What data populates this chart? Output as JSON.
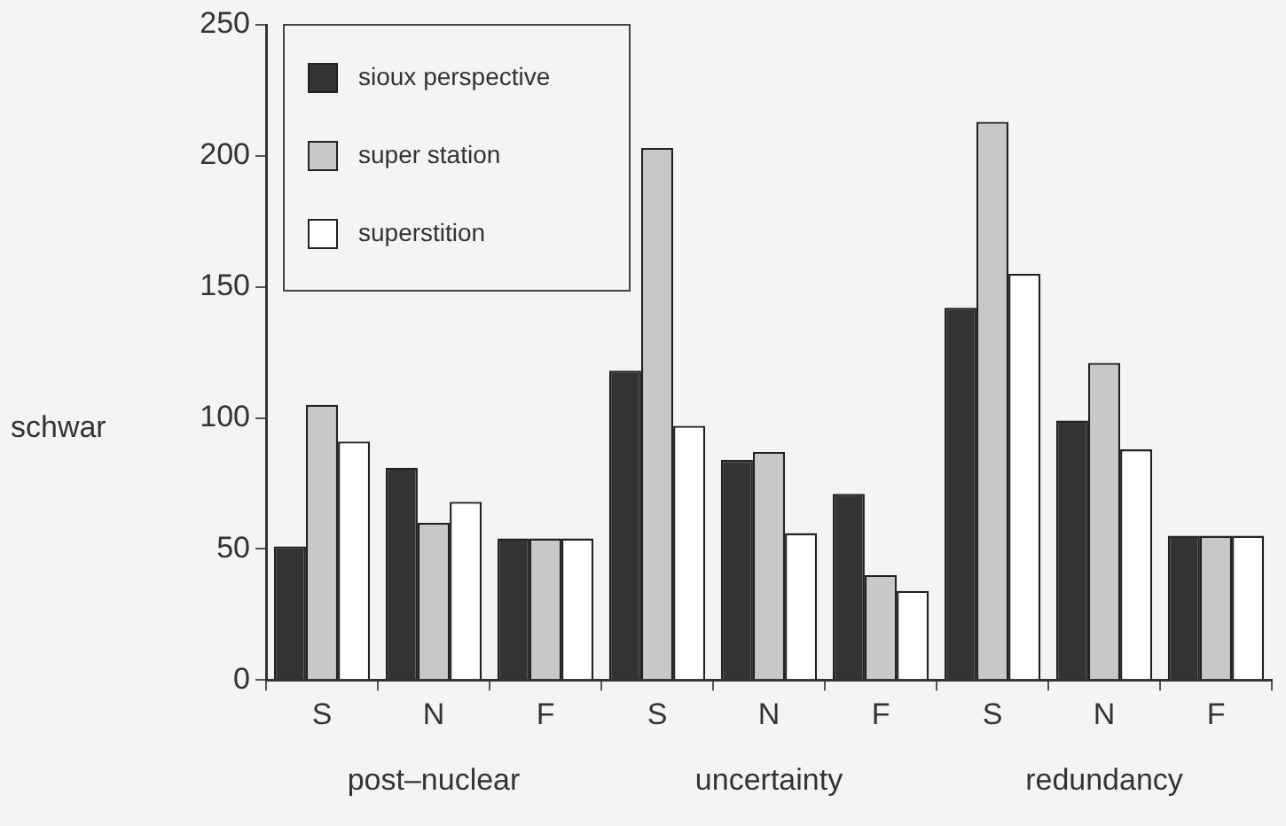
{
  "chart_data": {
    "type": "bar",
    "categories": [
      "S",
      "N",
      "F",
      "S",
      "N",
      "F",
      "S",
      "N",
      "F"
    ],
    "series": [
      {
        "name": "sioux perspective",
        "color": "#333333",
        "values": [
          51,
          81,
          54,
          118,
          84,
          71,
          142,
          99,
          55
        ]
      },
      {
        "name": "super station",
        "color": "#c8c8c8",
        "values": [
          105,
          60,
          54,
          203,
          87,
          40,
          213,
          121,
          55
        ]
      },
      {
        "name": "superstition",
        "color": "#ffffff",
        "values": [
          91,
          68,
          54,
          97,
          56,
          34,
          155,
          88,
          55
        ]
      }
    ],
    "ylabel": "schwar",
    "ylim": [
      0,
      250
    ],
    "yticks": [
      0,
      50,
      100,
      150,
      200,
      250
    ],
    "grid": false,
    "legend": "top left",
    "annotations": [
      "post–nuclear",
      "uncertainty",
      "redundancy"
    ]
  }
}
